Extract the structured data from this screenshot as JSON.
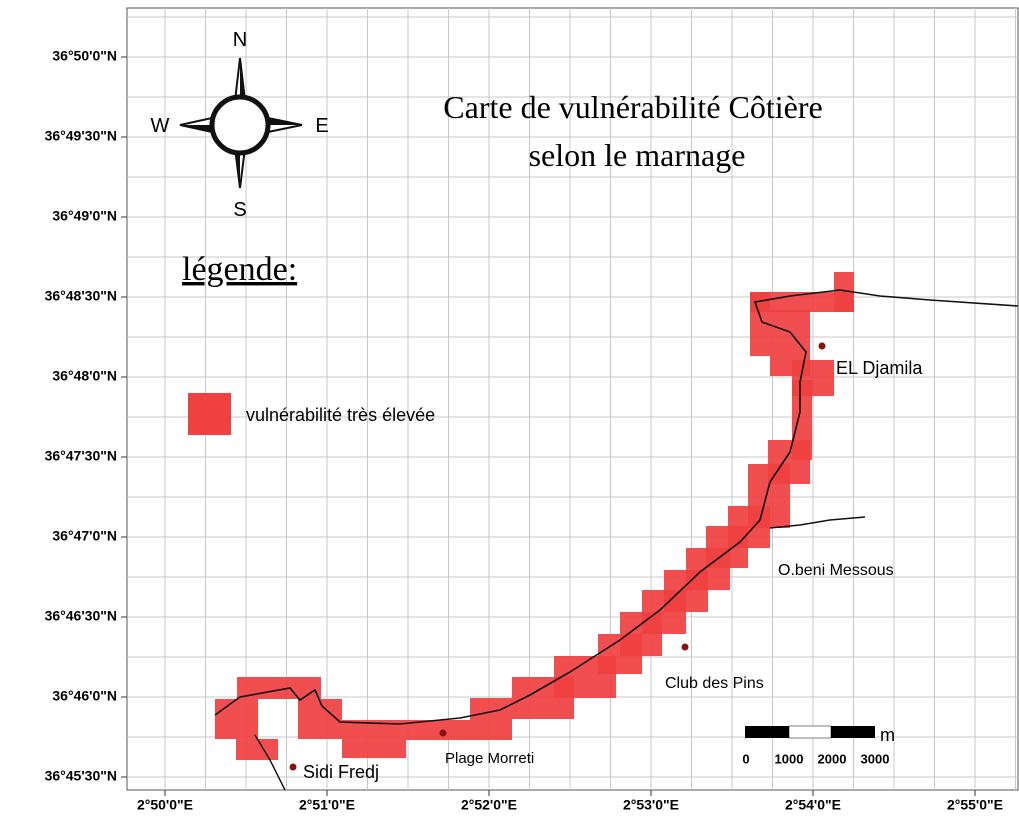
{
  "map": {
    "title": [
      "Carte de vulnérabilité Côtière",
      "selon le marnage"
    ],
    "legend_title": "légende:",
    "legend_items": [
      "vulnérabilité très élevée"
    ],
    "compass": {
      "n": "N",
      "e": "E",
      "s": "S",
      "w": "W"
    },
    "places": [
      "EL Djamila",
      "O.beni Messous",
      "Club des Pins",
      "Plage Morreti",
      "Sidi Fredj"
    ],
    "lat_ticks": [
      "36°50'0\"N",
      "36°49'30\"N",
      "36°49'0\"N",
      "36°48'30\"N",
      "36°48'0\"N",
      "36°47'30\"N",
      "36°47'0\"N",
      "36°46'30\"N",
      "36°46'0\"N",
      "36°45'30\"N"
    ],
    "lon_ticks": [
      "2°50'0\"E",
      "2°51'0\"E",
      "2°52'0\"E",
      "2°53'0\"E",
      "2°54'0\"E",
      "2°55'0\"E"
    ],
    "scale_labels": [
      "0",
      "1000",
      "2000",
      "3000"
    ],
    "scale_unit": "m"
  }
}
